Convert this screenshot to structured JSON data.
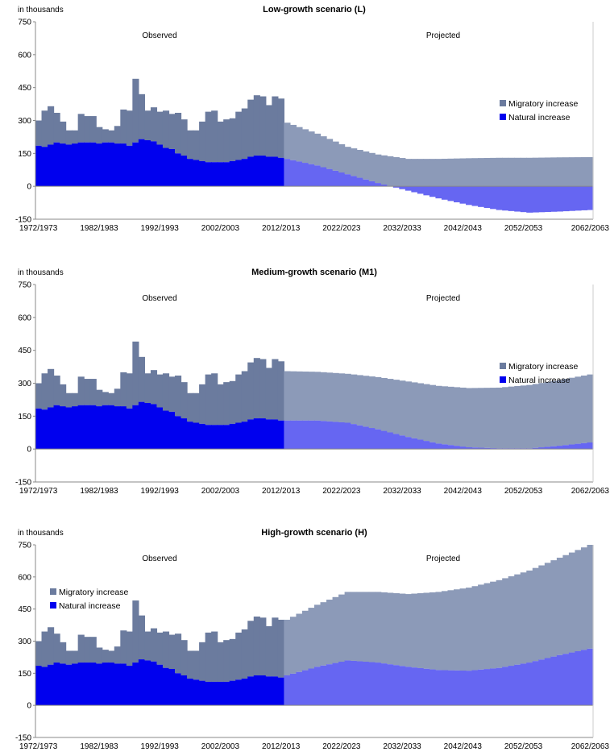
{
  "colors": {
    "migratory_observed": "#6B7B9E",
    "natural_observed": "#0000EE",
    "migratory_projected": "#8C9AB8",
    "natural_projected": "#6666F2",
    "axis": "#888888"
  },
  "chart_data": [
    {
      "type": "bar",
      "title": "Low-growth scenario (L)",
      "ylabel": "in thousands",
      "ylim": [
        -150,
        750
      ],
      "yticks": [
        "750",
        "600",
        "450",
        "300",
        "150",
        "0",
        "-150"
      ],
      "xticks": [
        "1972/1973",
        "1982/1983",
        "1992/1993",
        "2002/2003",
        "2012/2013",
        "2022/2023",
        "2032/2033",
        "2042/2043",
        "2052/2053",
        "2062/2063"
      ],
      "observed_label": "Observed",
      "projected_label": "Projected",
      "legend": [
        "Migratory increase",
        "Natural increase"
      ],
      "legend_position": "right",
      "observed": {
        "total": [
          300,
          345,
          365,
          335,
          295,
          255,
          255,
          330,
          320,
          320,
          270,
          260,
          255,
          275,
          350,
          345,
          490,
          420,
          345,
          360,
          340,
          345,
          330,
          335,
          305,
          255,
          255,
          295,
          340,
          345,
          295,
          305,
          310,
          340,
          355,
          395,
          415,
          410,
          370,
          410,
          400
        ],
        "natural": [
          185,
          180,
          190,
          200,
          195,
          190,
          195,
          200,
          200,
          200,
          195,
          200,
          200,
          195,
          195,
          185,
          200,
          215,
          210,
          205,
          190,
          175,
          170,
          150,
          140,
          125,
          120,
          115,
          110,
          110,
          110,
          110,
          115,
          120,
          125,
          135,
          140,
          140,
          135,
          135,
          130
        ]
      },
      "projected": {
        "x": [
          2013,
          2018,
          2023,
          2028,
          2033,
          2038,
          2043,
          2048,
          2053,
          2058,
          2063
        ],
        "total": [
          290,
          240,
          180,
          145,
          125,
          125,
          128,
          130,
          130,
          132,
          133
        ],
        "natural": [
          125,
          95,
          55,
          15,
          -20,
          -55,
          -85,
          -108,
          -120,
          -115,
          -108
        ]
      }
    },
    {
      "type": "bar",
      "title": "Medium-growth scenario (M1)",
      "ylabel": "in thousands",
      "ylim": [
        -150,
        750
      ],
      "yticks": [
        "750",
        "600",
        "450",
        "300",
        "150",
        "0",
        "-150"
      ],
      "xticks": [
        "1972/1973",
        "1982/1983",
        "1992/1993",
        "2002/2003",
        "2012/2013",
        "2022/2023",
        "2032/2033",
        "2042/2043",
        "2052/2053",
        "2062/2063"
      ],
      "observed_label": "Observed",
      "projected_label": "Projected",
      "legend": [
        "Migratory increase",
        "Natural increase"
      ],
      "legend_position": "right",
      "observed": {
        "total": [
          300,
          345,
          365,
          335,
          295,
          255,
          255,
          330,
          320,
          320,
          270,
          260,
          255,
          275,
          350,
          345,
          490,
          420,
          345,
          360,
          340,
          345,
          330,
          335,
          305,
          255,
          255,
          295,
          340,
          345,
          295,
          305,
          310,
          340,
          355,
          395,
          415,
          410,
          370,
          410,
          400
        ],
        "natural": [
          185,
          180,
          190,
          200,
          195,
          190,
          195,
          200,
          200,
          200,
          195,
          200,
          200,
          195,
          195,
          185,
          200,
          215,
          210,
          205,
          190,
          175,
          170,
          150,
          140,
          125,
          120,
          115,
          110,
          110,
          110,
          110,
          115,
          120,
          125,
          135,
          140,
          140,
          135,
          135,
          130
        ]
      },
      "projected": {
        "x": [
          2013,
          2018,
          2023,
          2028,
          2033,
          2038,
          2043,
          2048,
          2053,
          2058,
          2063
        ],
        "total": [
          355,
          352,
          343,
          328,
          308,
          288,
          278,
          280,
          292,
          315,
          340
        ],
        "natural": [
          130,
          130,
          120,
          90,
          55,
          25,
          8,
          3,
          3,
          15,
          30
        ]
      }
    },
    {
      "type": "bar",
      "title": "High-growth scenario (H)",
      "ylabel": "in thousands",
      "ylim": [
        -150,
        750
      ],
      "yticks": [
        "750",
        "600",
        "450",
        "300",
        "150",
        "0",
        "-150"
      ],
      "xticks": [
        "1972/1973",
        "1982/1983",
        "1992/1993",
        "2002/2003",
        "2012/2013",
        "2022/2023",
        "2032/2033",
        "2042/2043",
        "2052/2053",
        "2062/2063"
      ],
      "observed_label": "Observed",
      "projected_label": "Projected",
      "legend": [
        "Migratory increase",
        "Natural increase"
      ],
      "legend_position": "left",
      "observed": {
        "total": [
          300,
          345,
          365,
          335,
          295,
          255,
          255,
          330,
          320,
          320,
          270,
          260,
          255,
          275,
          350,
          345,
          490,
          420,
          345,
          360,
          340,
          345,
          330,
          335,
          305,
          255,
          255,
          295,
          340,
          345,
          295,
          305,
          310,
          340,
          355,
          395,
          415,
          410,
          370,
          410,
          400
        ],
        "natural": [
          185,
          180,
          190,
          200,
          195,
          190,
          195,
          200,
          200,
          200,
          195,
          200,
          200,
          195,
          195,
          185,
          200,
          215,
          210,
          205,
          190,
          175,
          170,
          150,
          140,
          125,
          120,
          115,
          110,
          110,
          110,
          110,
          115,
          120,
          125,
          135,
          140,
          140,
          135,
          135,
          130
        ]
      },
      "projected": {
        "x": [
          2013,
          2018,
          2023,
          2028,
          2033,
          2038,
          2043,
          2048,
          2053,
          2058,
          2063
        ],
        "total": [
          400,
          470,
          530,
          530,
          520,
          530,
          550,
          585,
          630,
          690,
          750
        ],
        "natural": [
          140,
          180,
          210,
          200,
          180,
          165,
          162,
          175,
          200,
          235,
          265
        ]
      }
    }
  ]
}
